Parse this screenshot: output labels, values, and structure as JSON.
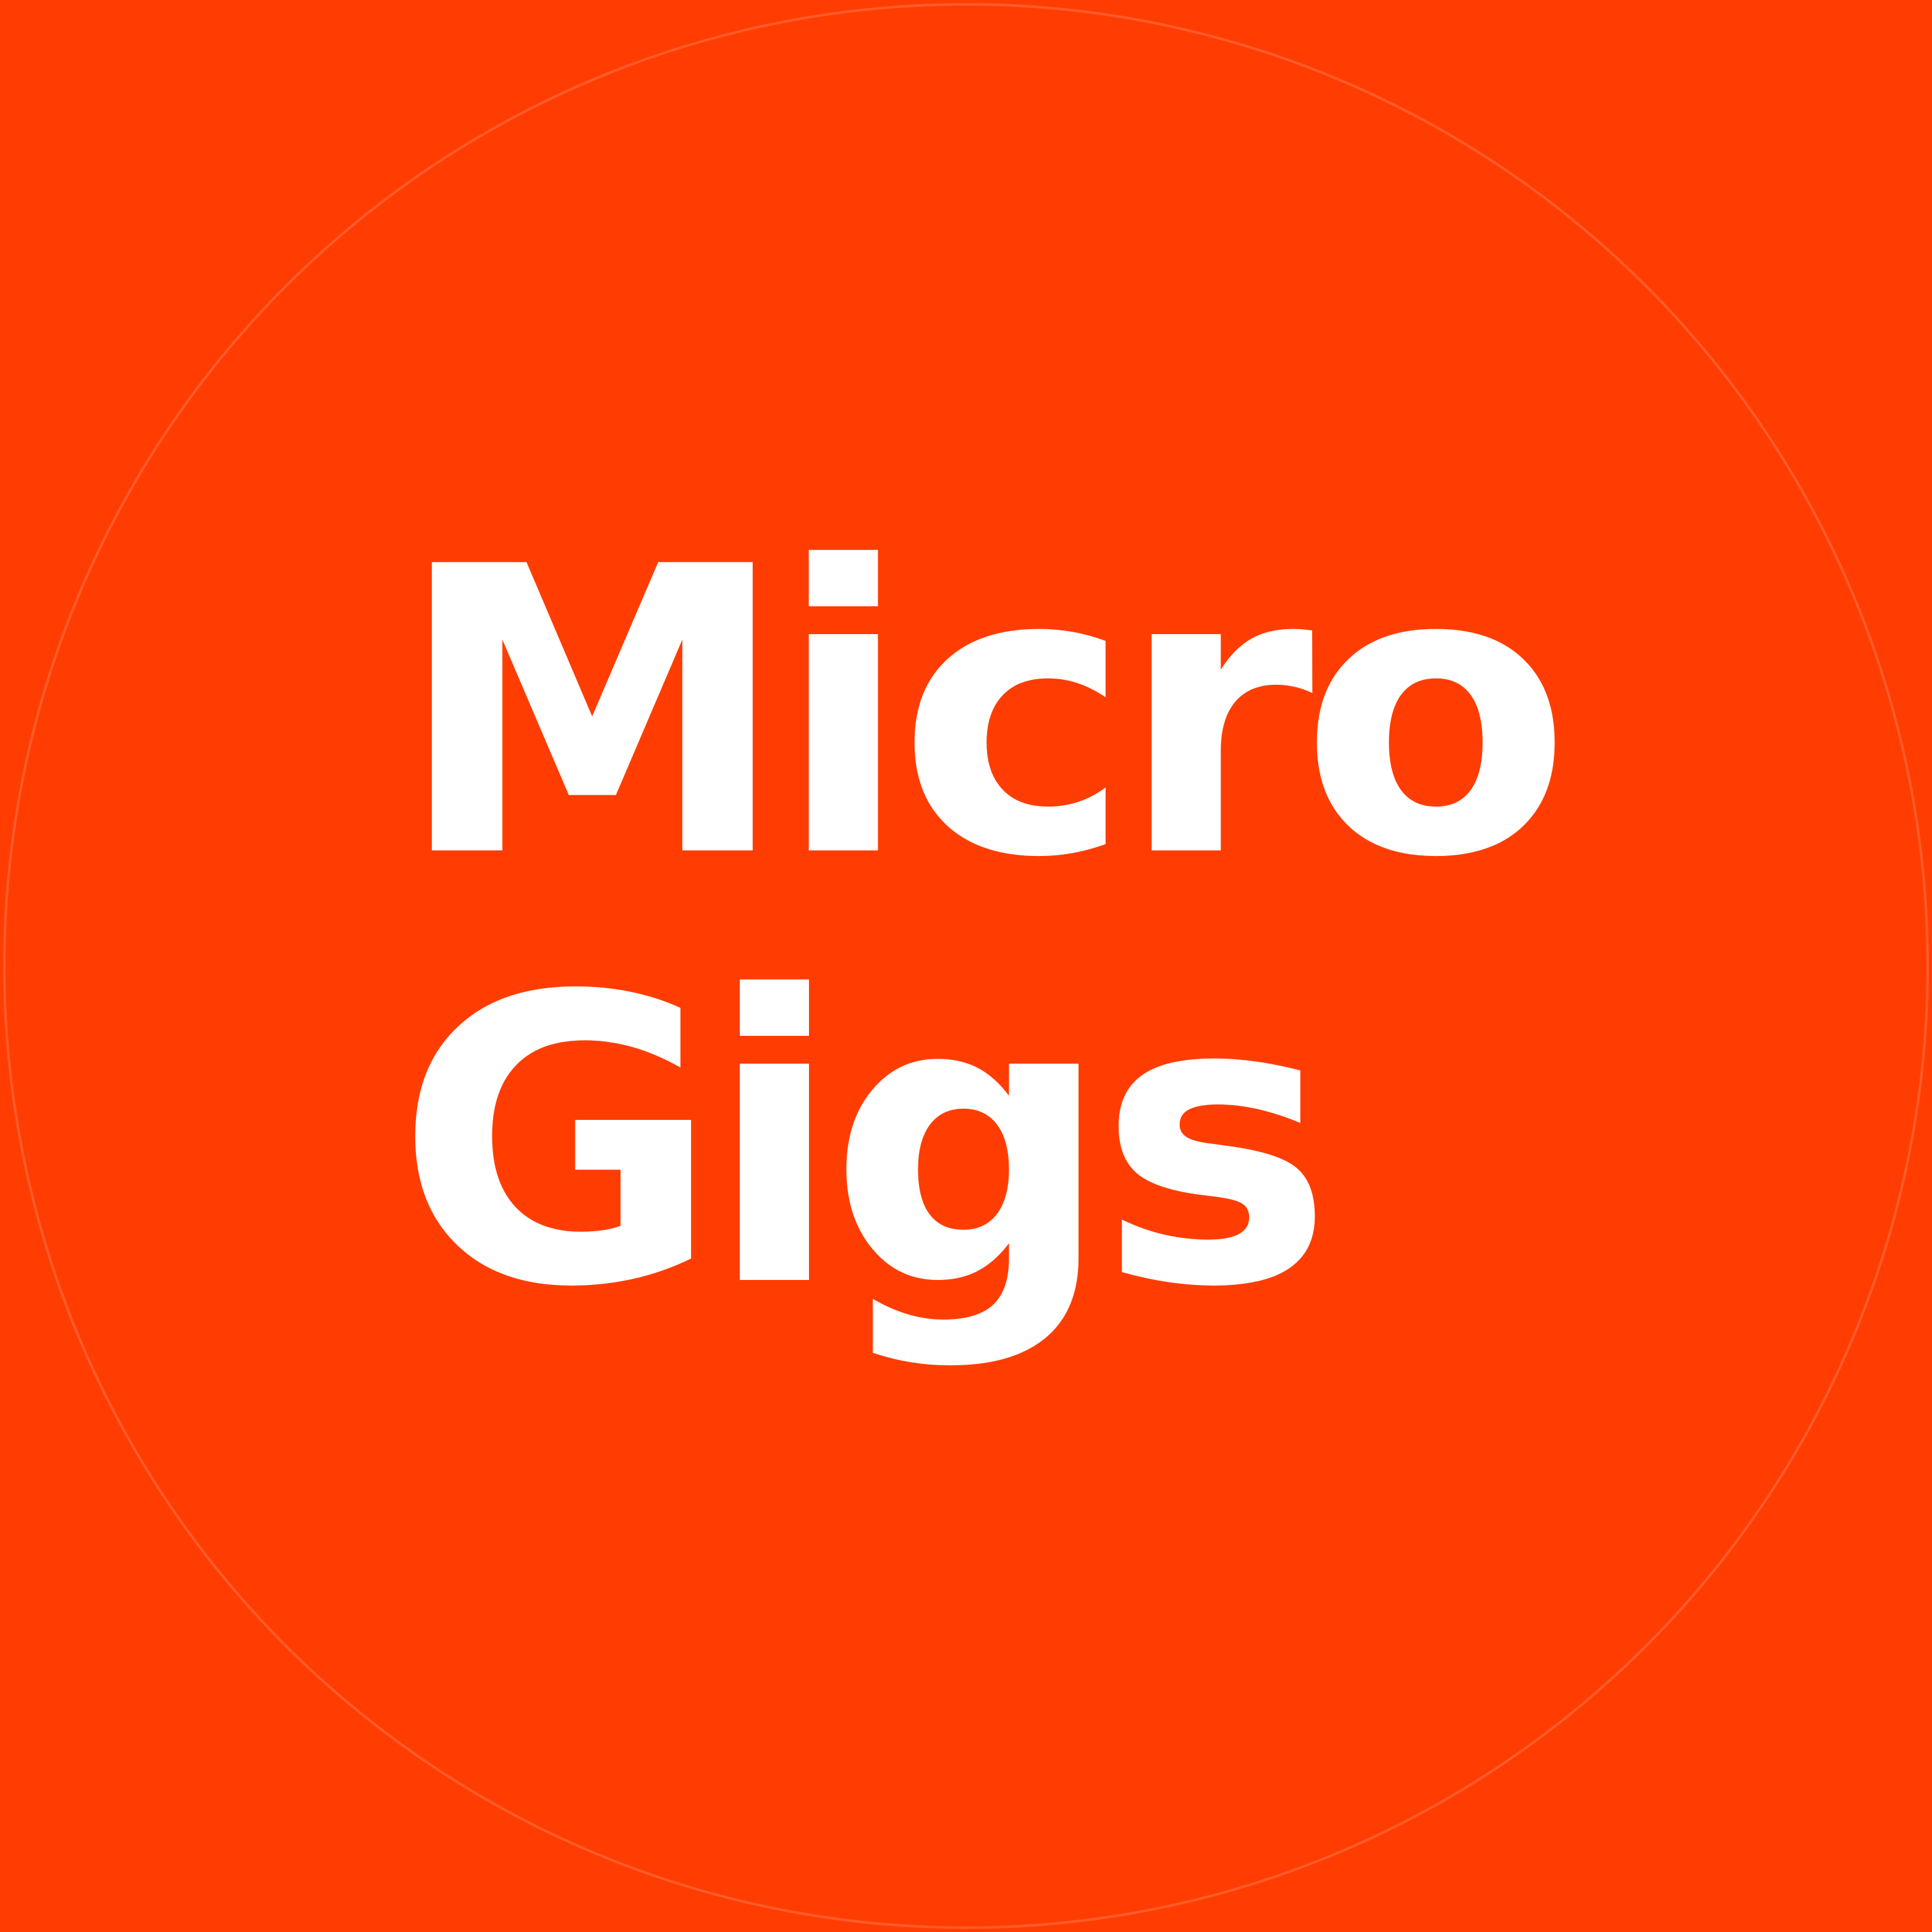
{
  "logo": {
    "line1": "Micro",
    "line2": "Gigs"
  },
  "colors": {
    "background": "#FF3D02",
    "text": "#FFFFFF",
    "circle_outline": "rgba(255,255,255,0.16)"
  }
}
